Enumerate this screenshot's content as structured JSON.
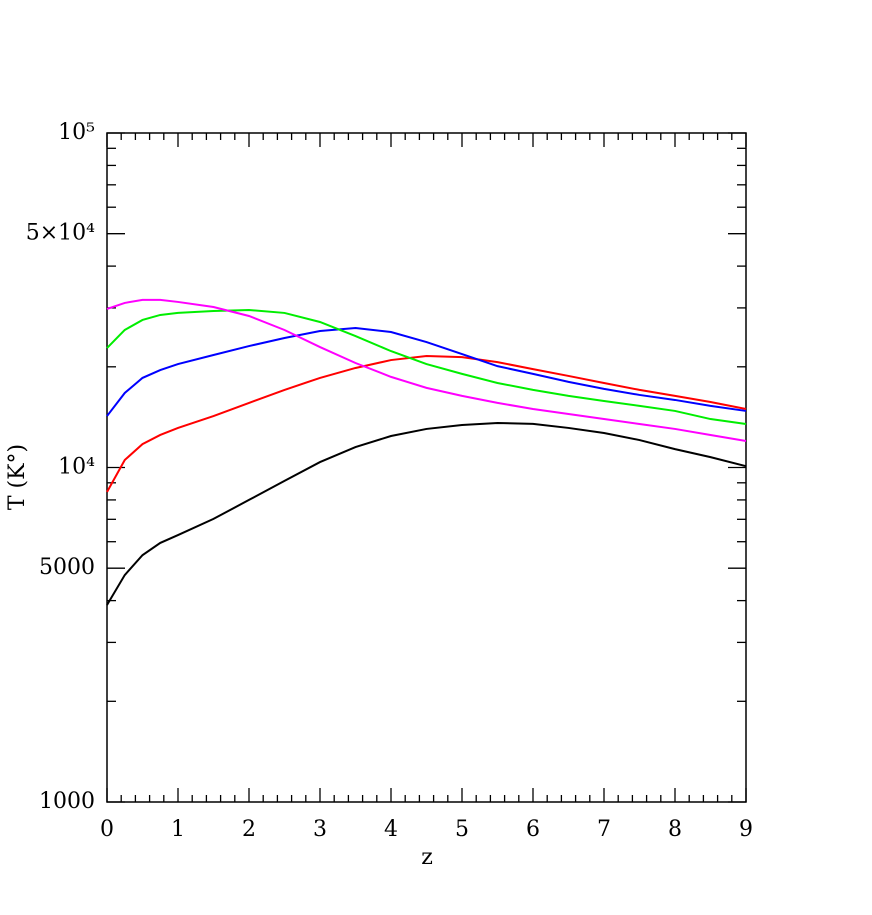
{
  "chart_data": {
    "type": "line",
    "xlabel": "z",
    "ylabel": "T (K°)",
    "ylog": true,
    "xlim": [
      0,
      9
    ],
    "ylim": [
      1000,
      100000
    ],
    "xticks": [
      0,
      1,
      2,
      3,
      4,
      5,
      6,
      7,
      8,
      9
    ],
    "xminorticks": [
      0.2,
      0.4,
      0.6,
      0.8,
      1.2,
      1.4,
      1.6,
      1.8,
      2.2,
      2.4,
      2.6,
      2.8,
      3.2,
      3.4,
      3.6,
      3.8,
      4.2,
      4.4,
      4.6,
      4.8,
      5.2,
      5.4,
      5.6,
      5.8,
      6.2,
      6.4,
      6.6,
      6.8,
      7.2,
      7.4,
      7.6,
      7.8,
      8.2,
      8.4,
      8.6,
      8.8
    ],
    "yticks": [
      1000,
      5000,
      {
        "value": 10000,
        "label": "10⁴"
      },
      {
        "value": 50000,
        "label": "5×10⁴"
      },
      {
        "value": 100000,
        "label": "10⁵"
      }
    ],
    "yminorticks": [
      2000,
      3000,
      4000,
      6000,
      7000,
      8000,
      9000,
      20000,
      30000,
      40000,
      60000,
      70000,
      80000,
      90000
    ],
    "x": [
      0,
      0.25,
      0.5,
      0.75,
      1,
      1.5,
      2,
      2.5,
      3,
      3.5,
      4,
      4.5,
      5,
      5.5,
      6,
      6.5,
      7,
      7.5,
      8,
      8.5,
      9
    ],
    "series": [
      {
        "color": "#000000",
        "values": [
          3880,
          4770,
          5470,
          5950,
          6280,
          7020,
          8000,
          9120,
          10380,
          11510,
          12420,
          13040,
          13400,
          13590,
          13500,
          13130,
          12680,
          12080,
          11350,
          10740,
          10090
        ]
      },
      {
        "color": "#ff0000",
        "values": [
          8450,
          10530,
          11750,
          12510,
          13130,
          14250,
          15600,
          17060,
          18530,
          19840,
          20950,
          21540,
          21380,
          20660,
          19680,
          18780,
          17890,
          17060,
          16370,
          15700,
          14960
        ]
      },
      {
        "color": "#0000ff",
        "values": [
          14250,
          16700,
          18530,
          19560,
          20380,
          21690,
          23070,
          24380,
          25590,
          26120,
          25410,
          23710,
          21840,
          20090,
          19050,
          18030,
          17180,
          16480,
          15920,
          15280,
          14760
        ]
      },
      {
        "color": "#00ee00",
        "values": [
          22750,
          25770,
          27610,
          28580,
          28980,
          29380,
          29580,
          28980,
          27230,
          24720,
          22280,
          20380,
          19050,
          17890,
          17060,
          16370,
          15810,
          15280,
          14760,
          13960,
          13490
        ]
      },
      {
        "color": "#ff00ff",
        "values": [
          29780,
          31050,
          31700,
          31700,
          31260,
          30190,
          28380,
          25770,
          22910,
          20530,
          18660,
          17300,
          16370,
          15600,
          14960,
          14450,
          13960,
          13490,
          13040,
          12510,
          12000
        ]
      }
    ]
  }
}
